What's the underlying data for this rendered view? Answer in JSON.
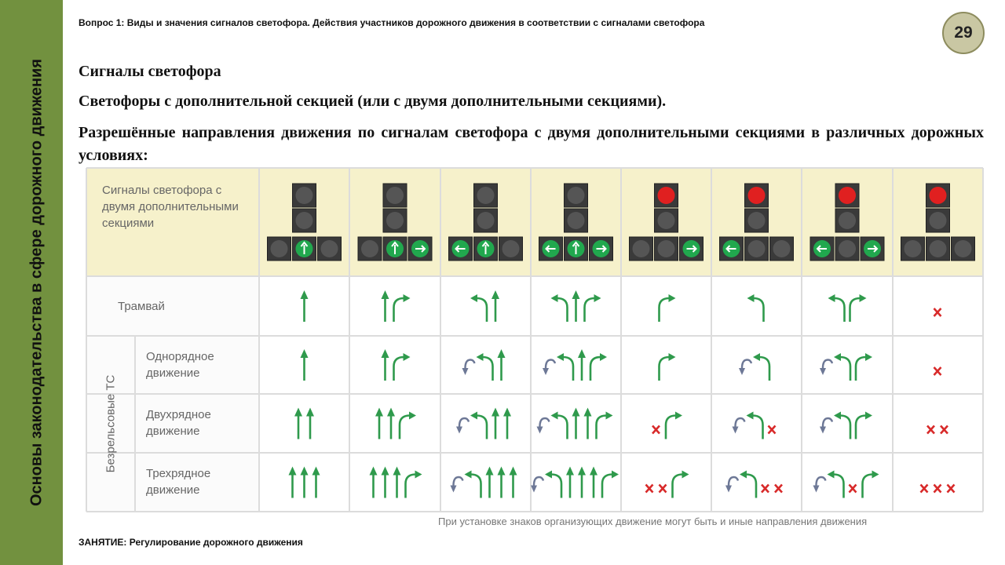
{
  "sidebar": {
    "title": "Основы законодательства в сфере дорожного движения"
  },
  "header": {
    "question": "Вопрос 1: Виды и значения сигналов светофора. Действия участников дорожного движения в соответствии с сигналами светофора",
    "page_number": "29"
  },
  "content": {
    "heading": "Сигналы светофора",
    "subheading": "Светофоры с дополнительной секцией (или с двумя дополнительными секциями).",
    "paragraph": "Разрешённые направления движения по сигналам светофора с двумя дополнительными секциями в различных дорожных условиях:"
  },
  "table": {
    "header_label": "Сигналы светофора с двумя дополнительными секциями",
    "tram_label": "Трамвай",
    "group_label": "Безрельсовые ТС",
    "row_labels": [
      "Однорядное движение",
      "Двухрядное движение",
      "Трехрядное движение"
    ],
    "note": "При установке знаков организующих движение могут быть и иные направления движения"
  },
  "footer": {
    "lesson": "ЗАНЯТИЕ: Регулирование дорожного движения"
  }
}
